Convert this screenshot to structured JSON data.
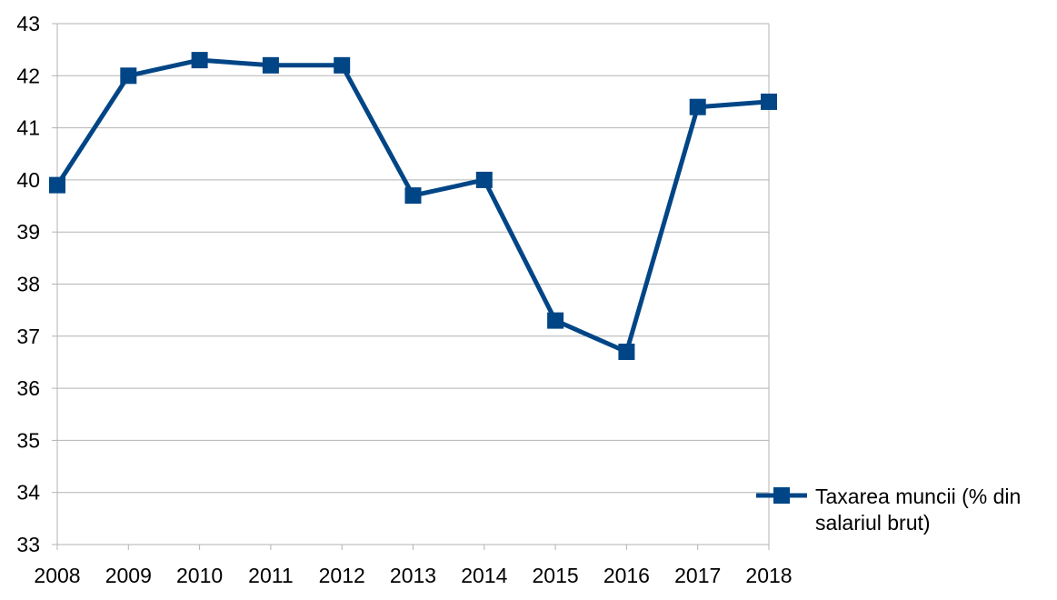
{
  "chart_data": {
    "type": "line",
    "title": "",
    "xlabel": "",
    "ylabel": "",
    "x": [
      "2008",
      "2009",
      "2010",
      "2011",
      "2012",
      "2013",
      "2014",
      "2015",
      "2016",
      "2017",
      "2018"
    ],
    "ylim": [
      33,
      43
    ],
    "yticks": [
      33,
      34,
      35,
      36,
      37,
      38,
      39,
      40,
      41,
      42,
      43
    ],
    "grid": true,
    "legend_position": "right",
    "series": [
      {
        "name": "Taxarea muncii (% din salariul brut)",
        "legend_lines": [
          "Taxarea muncii (% din",
          "salariul brut)"
        ],
        "values": [
          39.9,
          42.0,
          42.3,
          42.2,
          42.2,
          39.7,
          40.0,
          37.3,
          36.7,
          41.4,
          41.5
        ],
        "color": "#004586",
        "marker": "square"
      }
    ]
  }
}
